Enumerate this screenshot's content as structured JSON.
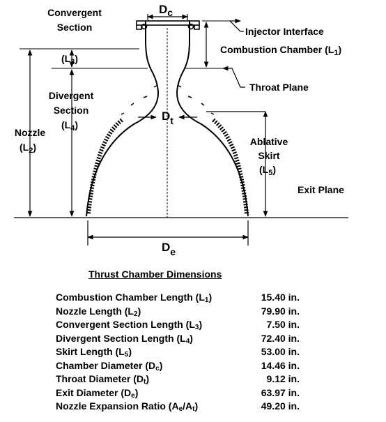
{
  "diagram": {
    "labels": {
      "convergent_line1": "Convergent",
      "convergent_line2": "Section",
      "l3": "(L",
      "l3_sub": "3",
      "divergent_line1": "Divergent",
      "divergent_line2": "Section",
      "l4": "(L",
      "l4_sub": "4",
      "nozzle_line1": "Nozzle",
      "l2": "(L",
      "l2_sub": "2",
      "dc": "D",
      "dc_sub": "c",
      "dt": "D",
      "dt_sub": "t",
      "de": "D",
      "de_sub": "e",
      "injector_interface": "Injector Interface",
      "combustion_chamber": "Combustion Chamber (L",
      "combustion_chamber_sub": "1",
      "throat_plane": "Throat Plane",
      "ablative_line1": "Ablative",
      "ablative_line2": "Skirt",
      "l5": "(L",
      "l5_sub": "5",
      "exit_plane": "Exit Plane",
      "close_paren": ")"
    }
  },
  "table": {
    "title": "Thrust Chamber Dimensions",
    "rows": [
      {
        "name": "Combustion Chamber Length (L",
        "sub": "1",
        "value": "15.40 in."
      },
      {
        "name": "Nozzle Length (L",
        "sub": "2",
        "value": "79.90 in."
      },
      {
        "name": "Convergent Section Length (L",
        "sub": "3",
        "value": "7.50 in."
      },
      {
        "name": "Divergent Section Length (L",
        "sub": "4",
        "value": "72.40 in."
      },
      {
        "name": "Skirt Length (L",
        "sub": "5",
        "value": "53.00 in."
      },
      {
        "name": "Chamber Diameter (D",
        "sub": "c",
        "value": "14.46 in."
      },
      {
        "name": "Throat Diameter (D",
        "sub": "t",
        "value": "9.12 in."
      },
      {
        "name": "Exit Diameter (D",
        "sub": "e",
        "value": "63.97 in."
      },
      {
        "name": "Nozzle Expansion Ratio (A",
        "sub": "e",
        "mid": "/A",
        "sub2": "t",
        "value": "49.20 in."
      }
    ]
  }
}
